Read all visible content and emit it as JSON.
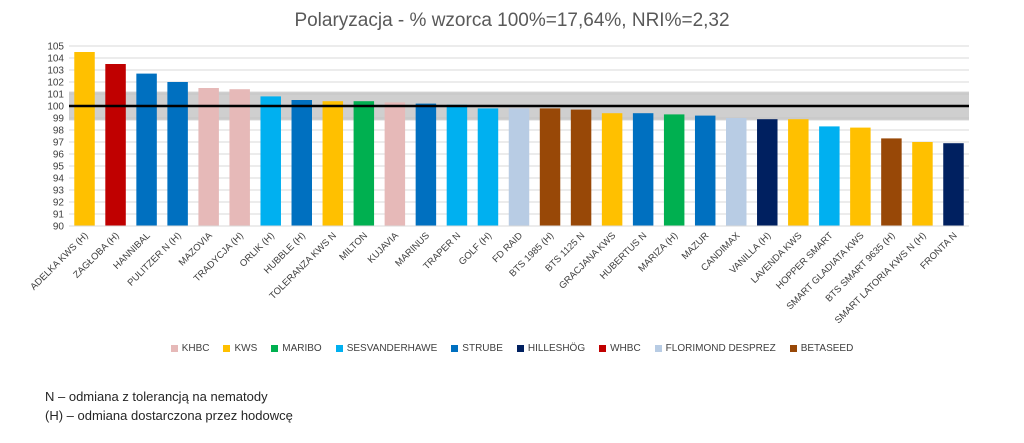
{
  "chart_data": {
    "type": "bar",
    "title": "Polaryzacja - % wzorca 100%=17,64%, NRI%=2,32",
    "ylim": [
      90,
      105
    ],
    "yticks": [
      90,
      91,
      92,
      93,
      94,
      95,
      96,
      97,
      98,
      99,
      100,
      101,
      102,
      103,
      104,
      105
    ],
    "grid": true,
    "reference_line": 100,
    "reference_band": [
      98.8,
      101.2
    ],
    "legend_position": "bottom",
    "categories": [
      "ADELKA KWS (H)",
      "ZAGŁOBA (H)",
      "HANNIBAL",
      "PULITZER N (H)",
      "MAZOVIA",
      "TRADYCJA (H)",
      "ORLIK (H)",
      "HUBBLE (H)",
      "TOLERANZA KWS N",
      "MILTON",
      "KUJAVIA",
      "MARINUS",
      "TRAPER N",
      "GOLF (H)",
      "FD RAID",
      "BTS 1985 (H)",
      "BTS 1125 N",
      "GRACJANA KWS",
      "HUBERTUS N",
      "MARIZA (H)",
      "MAZUR",
      "CANDIMAX",
      "VANILLA (H)",
      "LAVENDA KWS",
      "HOPPER SMART",
      "SMART GLADIATA KWS",
      "BTS SMART 9635 (H)",
      "SMART LATORIA KWS N (H)",
      "FRONTA N"
    ],
    "values": [
      104.5,
      103.5,
      102.7,
      102.0,
      101.5,
      101.4,
      100.8,
      100.5,
      100.4,
      100.4,
      100.3,
      100.2,
      100.1,
      99.8,
      99.8,
      99.8,
      99.7,
      99.4,
      99.4,
      99.3,
      99.2,
      99.0,
      98.9,
      98.9,
      98.3,
      98.2,
      97.3,
      97.0,
      96.9
    ],
    "breeders": [
      "KWS",
      "WHBC",
      "STRUBE",
      "STRUBE",
      "KHBC",
      "KHBC",
      "SESVANDERHAWE",
      "STRUBE",
      "KWS",
      "MARIBO",
      "KHBC",
      "STRUBE",
      "SESVANDERHAWE",
      "SESVANDERHAWE",
      "FLORIMOND DESPREZ",
      "BETASEED",
      "BETASEED",
      "KWS",
      "STRUBE",
      "MARIBO",
      "STRUBE",
      "FLORIMOND DESPREZ",
      "HILLESHÖG",
      "KWS",
      "SESVANDERHAWE",
      "KWS",
      "BETASEED",
      "KWS",
      "HILLESHÖG"
    ],
    "legend": [
      {
        "name": "KHBC",
        "color": "#e6b9b8"
      },
      {
        "name": "KWS",
        "color": "#ffc000"
      },
      {
        "name": "MARIBO",
        "color": "#00b050"
      },
      {
        "name": "SESVANDERHAWE",
        "color": "#00b0f0"
      },
      {
        "name": "STRUBE",
        "color": "#0070c0"
      },
      {
        "name": "HILLESHÖG",
        "color": "#002060"
      },
      {
        "name": "WHBC",
        "color": "#c00000"
      },
      {
        "name": "FLORIMOND DESPREZ",
        "color": "#b8cce4"
      },
      {
        "name": "BETASEED",
        "color": "#984807"
      }
    ]
  },
  "notes": [
    "N – odmiana z tolerancją na nematody",
    "(H) – odmiana dostarczona przez hodowcę"
  ]
}
